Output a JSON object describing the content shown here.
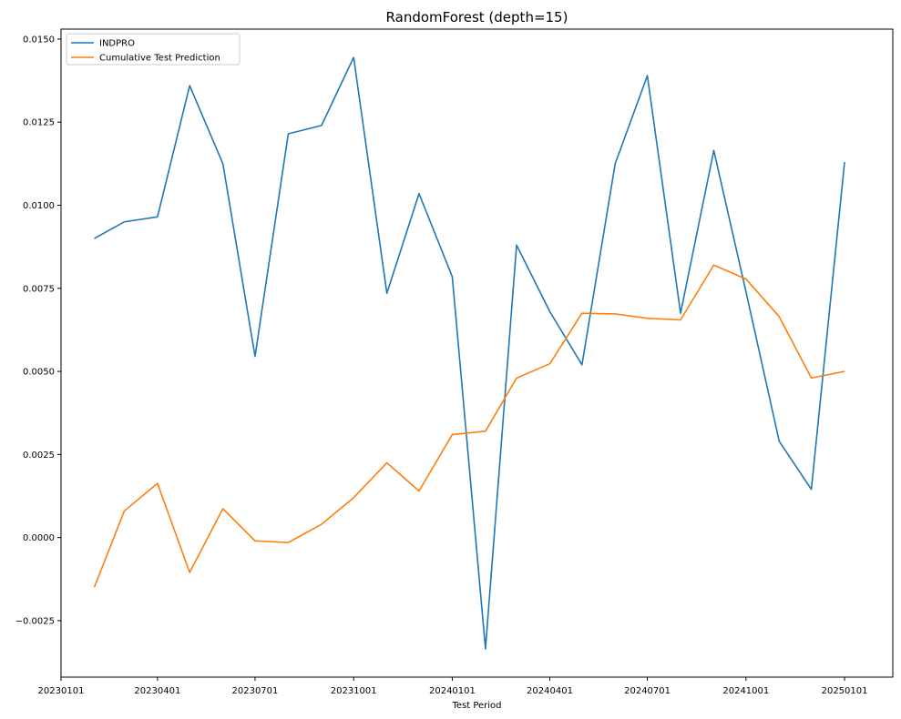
{
  "chart_data": {
    "type": "line",
    "title": "RandomForest (depth=15)",
    "xlabel": "Test Period",
    "ylabel": "",
    "ylim": [
      -0.0042,
      0.0153
    ],
    "xlim": [
      "2023-01-01",
      "2025-02-15"
    ],
    "grid": false,
    "legend_position": "top-left",
    "x_ticks": [
      {
        "date": "2023-01-01",
        "label": "20230101"
      },
      {
        "date": "2023-04-01",
        "label": "20230401"
      },
      {
        "date": "2023-07-01",
        "label": "20230701"
      },
      {
        "date": "2023-10-01",
        "label": "20231001"
      },
      {
        "date": "2024-01-01",
        "label": "20240101"
      },
      {
        "date": "2024-04-01",
        "label": "20240401"
      },
      {
        "date": "2024-07-01",
        "label": "20240701"
      },
      {
        "date": "2024-10-01",
        "label": "20241001"
      },
      {
        "date": "2025-01-01",
        "label": "20250101"
      }
    ],
    "y_ticks": [
      {
        "value": -0.0025,
        "label": "−0.0025"
      },
      {
        "value": 0.0,
        "label": "0.0000"
      },
      {
        "value": 0.0025,
        "label": "0.0025"
      },
      {
        "value": 0.005,
        "label": "0.0050"
      },
      {
        "value": 0.0075,
        "label": "0.0075"
      },
      {
        "value": 0.01,
        "label": "0.0100"
      },
      {
        "value": 0.0125,
        "label": "0.0125"
      },
      {
        "value": 0.015,
        "label": "0.0150"
      }
    ],
    "x": [
      "2023-02-01",
      "2023-03-01",
      "2023-04-01",
      "2023-05-01",
      "2023-06-01",
      "2023-07-01",
      "2023-08-01",
      "2023-09-01",
      "2023-10-01",
      "2023-11-01",
      "2023-12-01",
      "2024-01-01",
      "2024-02-01",
      "2024-03-01",
      "2024-04-01",
      "2024-05-01",
      "2024-06-01",
      "2024-07-01",
      "2024-08-01",
      "2024-09-01",
      "2024-10-01",
      "2024-11-01",
      "2024-12-01",
      "2025-01-01"
    ],
    "series": [
      {
        "name": "INDPRO",
        "color": "#1f77b4",
        "values": [
          0.009,
          0.0095,
          0.00965,
          0.0136,
          0.01125,
          0.00545,
          0.01215,
          0.0124,
          0.01445,
          0.00735,
          0.01035,
          0.00785,
          -0.00335,
          0.0088,
          0.0068,
          0.0052,
          0.01125,
          0.0139,
          0.00675,
          0.01165,
          0.0074,
          0.0029,
          0.00145,
          0.0113
        ]
      },
      {
        "name": "Cumulative Test Prediction",
        "color": "#ff7f0e",
        "values": [
          -0.0015,
          0.0008,
          0.00163,
          -0.00105,
          0.00087,
          -0.0001,
          -0.00015,
          0.0004,
          0.0012,
          0.00225,
          0.0014,
          0.0031,
          0.0032,
          0.0048,
          0.00523,
          0.00675,
          0.00673,
          0.0066,
          0.00655,
          0.0082,
          0.00778,
          0.00665,
          0.0048,
          0.005
        ]
      }
    ]
  }
}
